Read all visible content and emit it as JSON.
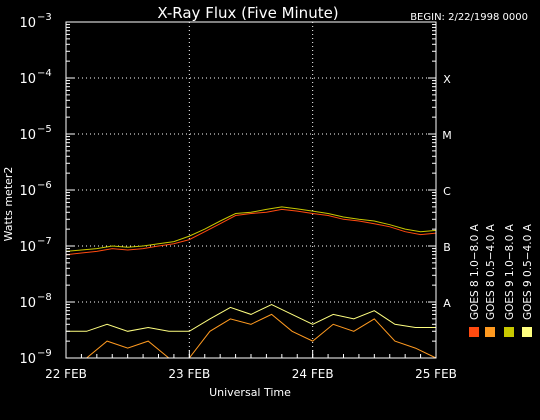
{
  "chart_data": {
    "type": "line",
    "title": "X-Ray Flux (Five Minute)",
    "begin_label": "BEGIN: 2/22/1998 0000",
    "ylabel": "Watts meter2",
    "xlabel": "Universal Time",
    "y_scale": "log",
    "ylim": [
      1e-09,
      0.001
    ],
    "xlim": [
      "1998-02-22T00:00",
      "1998-02-25T00:00"
    ],
    "grid": true,
    "x_ticks": [
      {
        "value": "1998-02-22T00:00",
        "label": "22 FEB"
      },
      {
        "value": "1998-02-23T00:00",
        "label": "23 FEB"
      },
      {
        "value": "1998-02-24T00:00",
        "label": "24 FEB"
      },
      {
        "value": "1998-02-25T00:00",
        "label": "25 FEB"
      }
    ],
    "y_ticks": [
      {
        "value": 1e-09,
        "base": "10",
        "exp": "−9"
      },
      {
        "value": 1e-08,
        "base": "10",
        "exp": "−8"
      },
      {
        "value": 1e-07,
        "base": "10",
        "exp": "−7"
      },
      {
        "value": 1e-06,
        "base": "10",
        "exp": "−6"
      },
      {
        "value": 1e-05,
        "base": "10",
        "exp": "−5"
      },
      {
        "value": 0.0001,
        "base": "10",
        "exp": "−4"
      },
      {
        "value": 0.001,
        "base": "10",
        "exp": "−3"
      }
    ],
    "flare_classes": [
      {
        "label": "A",
        "value": 1e-08
      },
      {
        "label": "B",
        "value": 1e-07
      },
      {
        "label": "C",
        "value": 1e-06
      },
      {
        "label": "M",
        "value": 1e-05
      },
      {
        "label": "X",
        "value": 0.0001
      }
    ],
    "legend_position": "right-vertical",
    "series": [
      {
        "name": "GOES 8  1.0−8.0 A",
        "color": "#ff4a10",
        "x": [
          "1998-02-22T00:00",
          "1998-02-22T03:00",
          "1998-02-22T06:00",
          "1998-02-22T09:00",
          "1998-02-22T12:00",
          "1998-02-22T15:00",
          "1998-02-22T18:00",
          "1998-02-22T21:00",
          "1998-02-23T00:00",
          "1998-02-23T03:00",
          "1998-02-23T06:00",
          "1998-02-23T09:00",
          "1998-02-23T12:00",
          "1998-02-23T15:00",
          "1998-02-23T18:00",
          "1998-02-23T21:00",
          "1998-02-24T00:00",
          "1998-02-24T03:00",
          "1998-02-24T06:00",
          "1998-02-24T09:00",
          "1998-02-24T12:00",
          "1998-02-24T15:00",
          "1998-02-24T18:00",
          "1998-02-24T21:00",
          "1998-02-25T00:00"
        ],
        "y": [
          7e-08,
          7.5e-08,
          8e-08,
          9e-08,
          8.5e-08,
          9e-08,
          1e-07,
          1.1e-07,
          1.3e-07,
          1.8e-07,
          2.5e-07,
          3.5e-07,
          3.8e-07,
          4e-07,
          4.5e-07,
          4.2e-07,
          3.8e-07,
          3.5e-07,
          3e-07,
          2.8e-07,
          2.5e-07,
          2.2e-07,
          1.8e-07,
          1.6e-07,
          1.7e-07
        ]
      },
      {
        "name": "GOES 8  0.5−4.0 A",
        "color": "#ff9a20",
        "x": [
          "1998-02-22T00:00",
          "1998-02-22T04:00",
          "1998-02-22T08:00",
          "1998-02-22T12:00",
          "1998-02-22T16:00",
          "1998-02-22T20:00",
          "1998-02-23T00:00",
          "1998-02-23T04:00",
          "1998-02-23T08:00",
          "1998-02-23T12:00",
          "1998-02-23T16:00",
          "1998-02-23T20:00",
          "1998-02-24T00:00",
          "1998-02-24T04:00",
          "1998-02-24T08:00",
          "1998-02-24T12:00",
          "1998-02-24T16:00",
          "1998-02-24T20:00",
          "1998-02-25T00:00"
        ],
        "y": [
          1e-09,
          1e-09,
          2e-09,
          1.5e-09,
          2e-09,
          1e-09,
          1e-09,
          3e-09,
          5e-09,
          4e-09,
          6e-09,
          3e-09,
          2e-09,
          4e-09,
          3e-09,
          5e-09,
          2e-09,
          1.5e-09,
          1e-09
        ]
      },
      {
        "name": "GOES 9  0.5−4.0 A",
        "color": "#ffff80",
        "x": [
          "1998-02-22T00:00",
          "1998-02-22T04:00",
          "1998-02-22T08:00",
          "1998-02-22T12:00",
          "1998-02-22T16:00",
          "1998-02-22T20:00",
          "1998-02-23T00:00",
          "1998-02-23T04:00",
          "1998-02-23T08:00",
          "1998-02-23T12:00",
          "1998-02-23T16:00",
          "1998-02-23T20:00",
          "1998-02-24T00:00",
          "1998-02-24T04:00",
          "1998-02-24T08:00",
          "1998-02-24T12:00",
          "1998-02-24T16:00",
          "1998-02-24T20:00",
          "1998-02-25T00:00"
        ],
        "y": [
          3e-09,
          3e-09,
          4e-09,
          3e-09,
          3.5e-09,
          3e-09,
          3e-09,
          5e-09,
          8e-09,
          6e-09,
          9e-09,
          6e-09,
          4e-09,
          6e-09,
          5e-09,
          7e-09,
          4e-09,
          3.5e-09,
          3.5e-09
        ]
      },
      {
        "name": "GOES 9  1.0−8.0 A",
        "color": "#c8c800",
        "x": [
          "1998-02-22T00:00",
          "1998-02-22T03:00",
          "1998-02-22T06:00",
          "1998-02-22T09:00",
          "1998-02-22T12:00",
          "1998-02-22T15:00",
          "1998-02-22T18:00",
          "1998-02-22T21:00",
          "1998-02-23T00:00",
          "1998-02-23T03:00",
          "1998-02-23T06:00",
          "1998-02-23T09:00",
          "1998-02-23T12:00",
          "1998-02-23T15:00",
          "1998-02-23T18:00",
          "1998-02-23T21:00",
          "1998-02-24T00:00",
          "1998-02-24T03:00",
          "1998-02-24T06:00",
          "1998-02-24T09:00",
          "1998-02-24T12:00",
          "1998-02-24T15:00",
          "1998-02-24T18:00",
          "1998-02-24T21:00",
          "1998-02-25T00:00"
        ],
        "y": [
          8e-08,
          8.5e-08,
          9e-08,
          1e-07,
          9.5e-08,
          1e-07,
          1.1e-07,
          1.2e-07,
          1.5e-07,
          2e-07,
          2.8e-07,
          3.8e-07,
          4e-07,
          4.5e-07,
          5e-07,
          4.6e-07,
          4.2e-07,
          3.8e-07,
          3.3e-07,
          3e-07,
          2.8e-07,
          2.4e-07,
          2e-07,
          1.8e-07,
          1.9e-07
        ]
      }
    ],
    "legend_order": [
      0,
      1,
      3,
      2
    ]
  }
}
